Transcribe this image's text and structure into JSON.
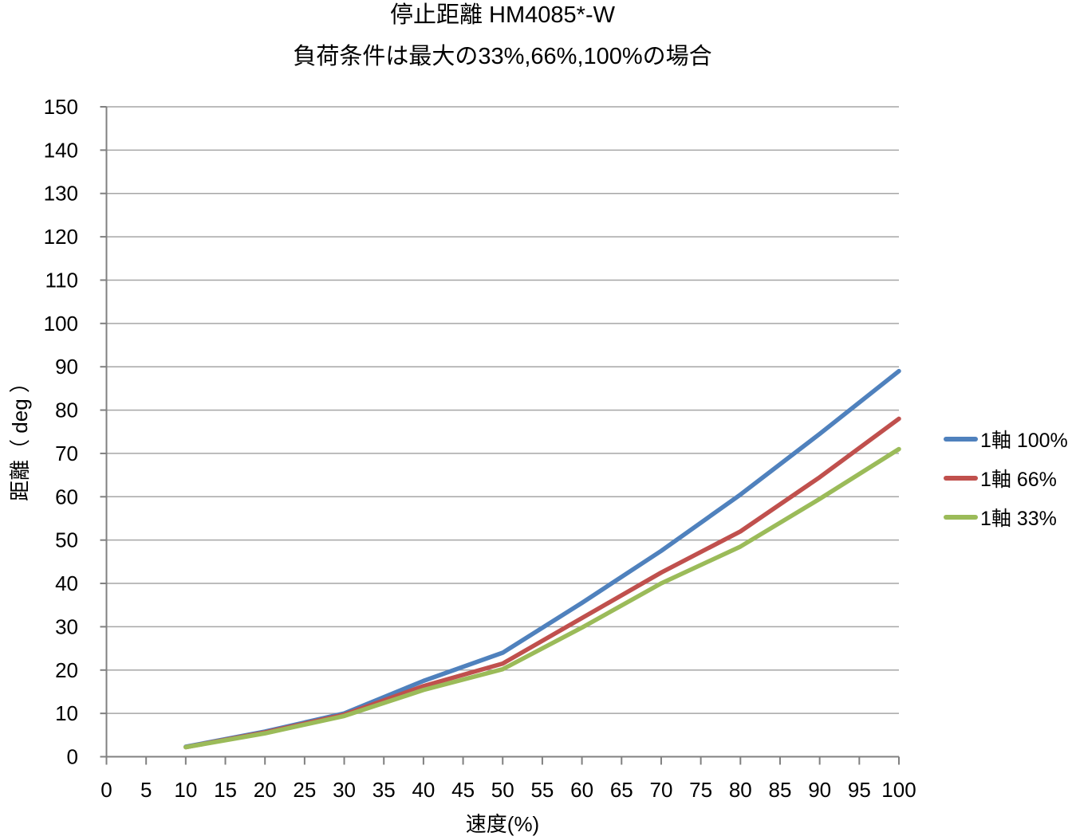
{
  "chart_data": {
    "type": "line",
    "title": "停止距離 HM4085*-W",
    "subtitle": "負荷条件は最大の33%,66%,100%の場合",
    "xlabel": "速度(%)",
    "ylabel": "距離（ deg ）",
    "xlim": [
      0,
      100
    ],
    "ylim": [
      0,
      150
    ],
    "x_ticks": [
      0,
      5,
      10,
      15,
      20,
      25,
      30,
      35,
      40,
      45,
      50,
      55,
      60,
      65,
      70,
      75,
      80,
      85,
      90,
      95,
      100
    ],
    "y_ticks": [
      0,
      10,
      20,
      30,
      40,
      50,
      60,
      70,
      80,
      90,
      100,
      110,
      120,
      130,
      140,
      150
    ],
    "grid": true,
    "legend_position": "right",
    "x": [
      10,
      20,
      30,
      40,
      50,
      60,
      70,
      80,
      90,
      100
    ],
    "series": [
      {
        "name": "1軸 100%",
        "color": "#4F81BD",
        "values": [
          2.3,
          5.8,
          10.0,
          17.5,
          24.0,
          35.5,
          47.5,
          60.5,
          74.5,
          89.0
        ]
      },
      {
        "name": "1軸 66%",
        "color": "#C0504D",
        "values": [
          2.2,
          5.6,
          9.7,
          16.3,
          21.5,
          32.0,
          42.5,
          52.0,
          64.5,
          78.0
        ]
      },
      {
        "name": "1軸 33%",
        "color": "#9BBB59",
        "values": [
          2.2,
          5.4,
          9.4,
          15.4,
          20.2,
          29.8,
          40.0,
          48.5,
          59.5,
          71.0
        ]
      }
    ],
    "style": {
      "grid_color": "#A6A6A6",
      "axis_color": "#808080",
      "text_color": "#000000",
      "background": "#FFFFFF",
      "line_width": 5.5
    }
  }
}
